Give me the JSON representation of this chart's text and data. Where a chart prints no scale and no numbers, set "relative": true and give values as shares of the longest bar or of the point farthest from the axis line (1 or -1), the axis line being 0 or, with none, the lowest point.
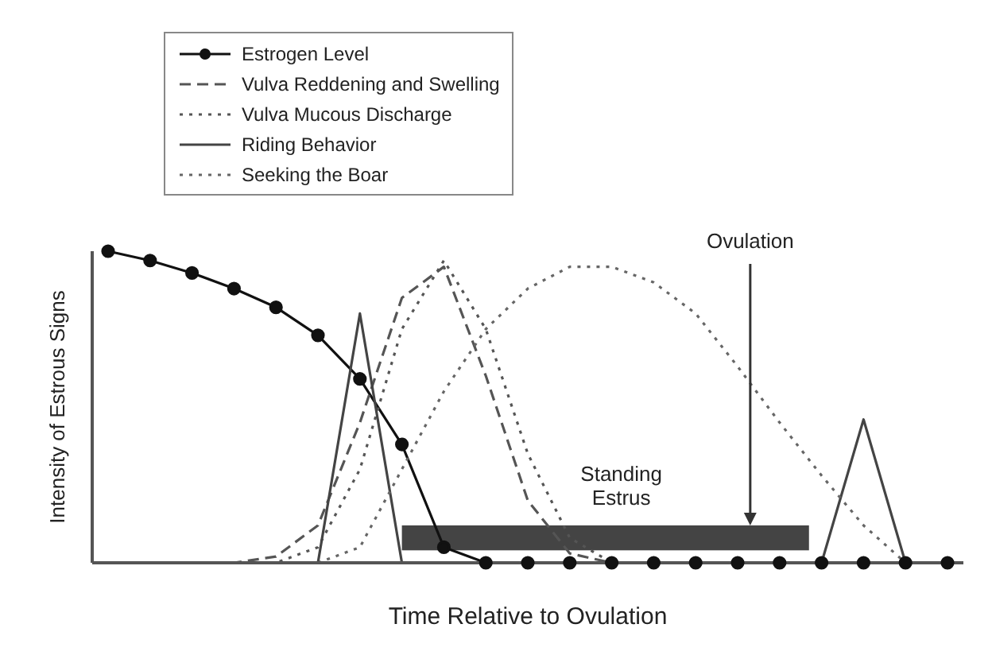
{
  "chart_data": {
    "type": "line",
    "relative": true,
    "xlabel": "Time Relative to Ovulation",
    "ylabel": "Intensity of Estrous Signs",
    "categories": [
      null,
      null,
      null,
      null,
      null,
      null,
      null,
      null,
      null,
      null,
      null,
      null,
      null,
      null,
      null,
      null,
      null,
      null,
      null,
      null,
      null
    ],
    "legend": "top left",
    "series": [
      {
        "name": "Estrogen Level",
        "color": "#111111",
        "marker": "circle",
        "line_style": "solid",
        "values": [
          1,
          0.97,
          0.93,
          0.88,
          0.82,
          0.73,
          0.59,
          0.38,
          0.05,
          0,
          0,
          0,
          0,
          0,
          0,
          0,
          0,
          0,
          0,
          0,
          0
        ]
      },
      {
        "name": "Vulva Reddening and Swelling",
        "color": "#555555",
        "marker": "none",
        "line_style": "dashed",
        "values": [
          0,
          0,
          0,
          0,
          0.02,
          0.12,
          0.45,
          0.85,
          0.95,
          0.6,
          0.2,
          0.03,
          0,
          0,
          0,
          0,
          0,
          0,
          0,
          0,
          0
        ]
      },
      {
        "name": "Vulva Mucous Discharge",
        "color": "#555555",
        "marker": "none",
        "line_style": "dotted",
        "values": [
          0,
          0,
          0,
          0,
          0,
          0.05,
          0.3,
          0.75,
          0.97,
          0.75,
          0.35,
          0.08,
          0,
          0,
          0,
          0,
          0,
          0,
          0,
          0,
          0
        ]
      },
      {
        "name": "Riding Behavior",
        "color": "#444444",
        "marker": "none",
        "line_style": "solid",
        "values": [
          0,
          0,
          0,
          0,
          0,
          0,
          0.8,
          0,
          0,
          0,
          0,
          0,
          0,
          0,
          0,
          0,
          0,
          0,
          0.46,
          0,
          0
        ]
      },
      {
        "name": "Seeking the Boar",
        "color": "#666666",
        "marker": "none",
        "line_style": "dotted",
        "values": [
          0,
          0,
          0,
          0,
          0,
          0,
          0.05,
          0.3,
          0.55,
          0.75,
          0.88,
          0.95,
          0.95,
          0.9,
          0.8,
          0.63,
          0.45,
          0.28,
          0.12,
          0,
          0
        ]
      }
    ],
    "annotations": [
      "Ovulation",
      "Standing Estrus"
    ]
  }
}
